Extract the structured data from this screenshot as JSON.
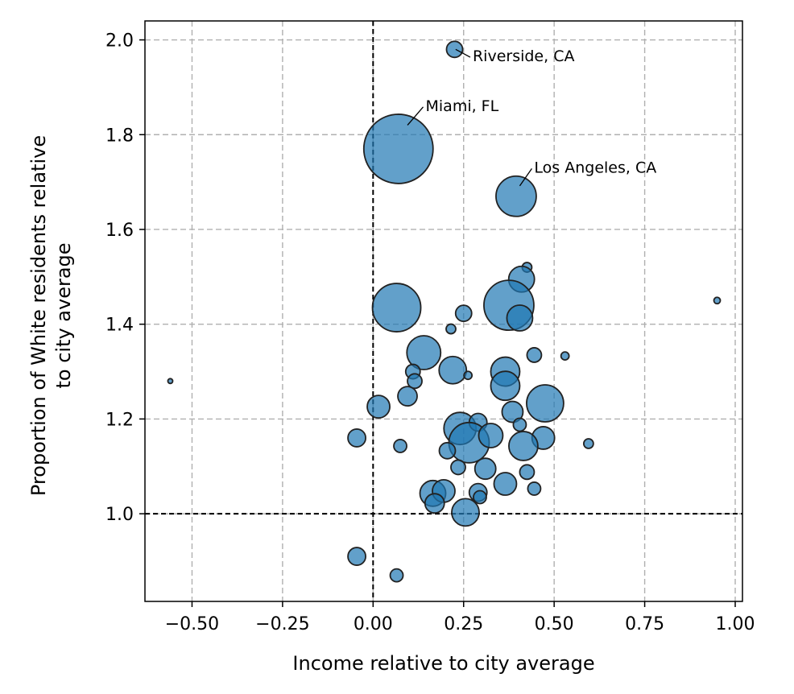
{
  "chart_data": {
    "type": "scatter",
    "xlabel": "Income relative to city average",
    "ylabel": [
      "Proportion of White residents relative",
      "to city average"
    ],
    "xlim": [
      -0.63,
      1.02
    ],
    "ylim": [
      0.815,
      2.04
    ],
    "xticks": [
      -0.5,
      -0.25,
      0.0,
      0.25,
      0.5,
      0.75,
      1.0
    ],
    "xtick_labels": [
      "−0.50",
      "−0.25",
      "0.00",
      "0.25",
      "0.50",
      "0.75",
      "1.00"
    ],
    "yticks": [
      1.0,
      1.2,
      1.4,
      1.6,
      1.8,
      2.0
    ],
    "ytick_labels": [
      "1.0",
      "1.2",
      "1.4",
      "1.6",
      "1.8",
      "2.0"
    ],
    "grid": true,
    "reference_lines": {
      "x": 0.0,
      "y": 1.0
    },
    "marker_color": "#1f77b4",
    "marker_edge_color": "#222222",
    "points": [
      {
        "x": 0.225,
        "y": 1.98,
        "r": 10
      },
      {
        "x": 0.07,
        "y": 1.77,
        "r": 43
      },
      {
        "x": 0.395,
        "y": 1.67,
        "r": 25
      },
      {
        "x": 0.425,
        "y": 1.52,
        "r": 6
      },
      {
        "x": 0.41,
        "y": 1.495,
        "r": 16
      },
      {
        "x": 0.065,
        "y": 1.435,
        "r": 30
      },
      {
        "x": 0.375,
        "y": 1.44,
        "r": 31
      },
      {
        "x": 0.25,
        "y": 1.423,
        "r": 10
      },
      {
        "x": 0.405,
        "y": 1.413,
        "r": 16
      },
      {
        "x": 0.95,
        "y": 1.45,
        "r": 4
      },
      {
        "x": 0.215,
        "y": 1.39,
        "r": 6
      },
      {
        "x": 0.14,
        "y": 1.34,
        "r": 21
      },
      {
        "x": 0.445,
        "y": 1.335,
        "r": 9
      },
      {
        "x": 0.53,
        "y": 1.333,
        "r": 5
      },
      {
        "x": 0.365,
        "y": 1.3,
        "r": 18
      },
      {
        "x": 0.22,
        "y": 1.303,
        "r": 17
      },
      {
        "x": 0.11,
        "y": 1.3,
        "r": 9
      },
      {
        "x": 0.262,
        "y": 1.292,
        "r": 5
      },
      {
        "x": 0.115,
        "y": 1.28,
        "r": 9
      },
      {
        "x": -0.56,
        "y": 1.28,
        "r": 3
      },
      {
        "x": 0.365,
        "y": 1.27,
        "r": 18
      },
      {
        "x": 0.095,
        "y": 1.248,
        "r": 12
      },
      {
        "x": 0.475,
        "y": 1.233,
        "r": 23
      },
      {
        "x": 0.015,
        "y": 1.226,
        "r": 14
      },
      {
        "x": 0.385,
        "y": 1.215,
        "r": 13
      },
      {
        "x": 0.24,
        "y": 1.18,
        "r": 20
      },
      {
        "x": 0.29,
        "y": 1.193,
        "r": 11
      },
      {
        "x": 0.405,
        "y": 1.188,
        "r": 8
      },
      {
        "x": 0.265,
        "y": 1.15,
        "r": 25
      },
      {
        "x": 0.325,
        "y": 1.165,
        "r": 15
      },
      {
        "x": 0.47,
        "y": 1.16,
        "r": 14
      },
      {
        "x": -0.045,
        "y": 1.16,
        "r": 11
      },
      {
        "x": 0.415,
        "y": 1.143,
        "r": 18
      },
      {
        "x": 0.075,
        "y": 1.143,
        "r": 8
      },
      {
        "x": 0.595,
        "y": 1.148,
        "r": 6
      },
      {
        "x": 0.205,
        "y": 1.133,
        "r": 10
      },
      {
        "x": 0.235,
        "y": 1.098,
        "r": 9
      },
      {
        "x": 0.31,
        "y": 1.095,
        "r": 13
      },
      {
        "x": 0.425,
        "y": 1.088,
        "r": 9
      },
      {
        "x": 0.365,
        "y": 1.063,
        "r": 14
      },
      {
        "x": 0.445,
        "y": 1.053,
        "r": 8
      },
      {
        "x": 0.165,
        "y": 1.043,
        "r": 16
      },
      {
        "x": 0.195,
        "y": 1.048,
        "r": 14
      },
      {
        "x": 0.29,
        "y": 1.045,
        "r": 11
      },
      {
        "x": 0.295,
        "y": 1.035,
        "r": 8
      },
      {
        "x": 0.17,
        "y": 1.022,
        "r": 12
      },
      {
        "x": 0.255,
        "y": 1.003,
        "r": 17
      },
      {
        "x": -0.045,
        "y": 0.91,
        "r": 11
      },
      {
        "x": 0.065,
        "y": 0.87,
        "r": 8
      }
    ],
    "annotations": [
      {
        "text": "Riverside, CA",
        "x": 0.275,
        "y": 1.955,
        "ax": 0.228,
        "ay": 1.98
      },
      {
        "text": "Miami, FL",
        "x": 0.145,
        "y": 1.85,
        "ax": 0.095,
        "ay": 1.82
      },
      {
        "text": "Los Angeles, CA",
        "x": 0.445,
        "y": 1.72,
        "ax": 0.405,
        "ay": 1.692
      }
    ]
  }
}
